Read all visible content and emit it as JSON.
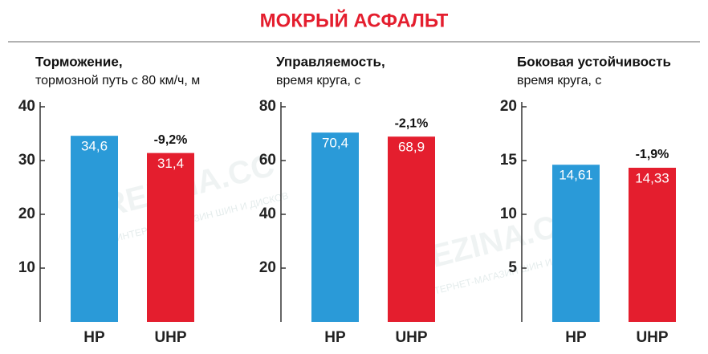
{
  "title": "МОКРЫЙ АСФАЛЬТ",
  "watermark": "REZINA.CC",
  "watermark_sub": "ИНТЕРНЕТ-МАГАЗИН ШИН И ДИСКОВ",
  "chart_data": [
    {
      "type": "bar",
      "title": "Торможение,",
      "subtitle": "тормозной путь с 80 км/ч, м",
      "categories": [
        "HP",
        "UHP"
      ],
      "values": [
        34.6,
        31.4
      ],
      "value_labels": [
        "34,6",
        "31,4"
      ],
      "colors": [
        "#2a9ad8",
        "#e41e2e"
      ],
      "annotation": "-9,2%",
      "ylim": [
        0,
        40
      ],
      "yticks": [
        10,
        20,
        30,
        40
      ]
    },
    {
      "type": "bar",
      "title": "Управляемость,",
      "subtitle": "время круга, с",
      "categories": [
        "HP",
        "UHP"
      ],
      "values": [
        70.4,
        68.9
      ],
      "value_labels": [
        "70,4",
        "68,9"
      ],
      "colors": [
        "#2a9ad8",
        "#e41e2e"
      ],
      "annotation": "-2,1%",
      "ylim": [
        0,
        80
      ],
      "yticks": [
        20,
        40,
        60,
        80
      ]
    },
    {
      "type": "bar",
      "title": "Боковая устойчивость",
      "subtitle": "время круга, с",
      "categories": [
        "HP",
        "UHP"
      ],
      "values": [
        14.61,
        14.33
      ],
      "value_labels": [
        "14,61",
        "14,33"
      ],
      "colors": [
        "#2a9ad8",
        "#e41e2e"
      ],
      "annotation": "-1,9%",
      "ylim": [
        0,
        20
      ],
      "yticks": [
        5,
        10,
        15,
        20
      ]
    }
  ]
}
